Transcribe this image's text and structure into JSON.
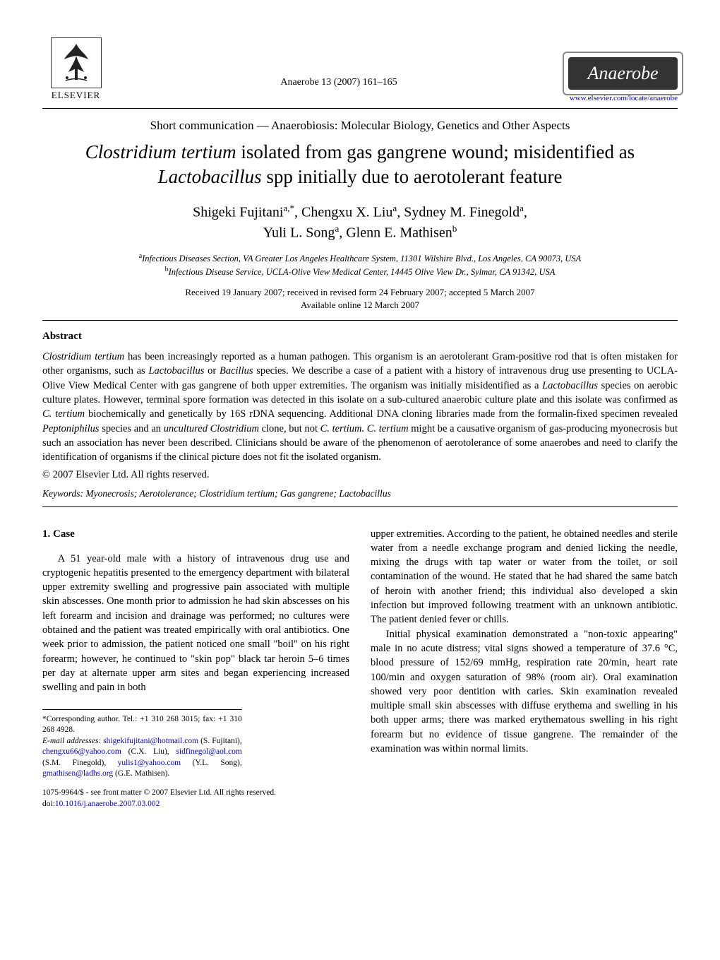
{
  "header": {
    "publisher": "ELSEVIER",
    "journal_ref": "Anaerobe 13 (2007) 161–165",
    "journal_name": "Anaerobe",
    "website": "www.elsevier.com/locate/anaerobe"
  },
  "section_line": "Short communication — Anaerobiosis: Molecular Biology, Genetics and Other Aspects",
  "title_parts": {
    "p1_italic": "Clostridium tertium",
    "p2": " isolated from gas gangrene wound; misidentified as ",
    "p3_italic": "Lactobacillus",
    "p4": " spp initially due to aerotolerant feature"
  },
  "authors": {
    "a1": "Shigeki Fujitani",
    "a1_sup": "a,*",
    "a2": "Chengxu X. Liu",
    "a2_sup": "a",
    "a3": "Sydney M. Finegold",
    "a3_sup": "a",
    "a4": "Yuli L. Song",
    "a4_sup": "a",
    "a5": "Glenn E. Mathisen",
    "a5_sup": "b"
  },
  "affiliations": {
    "a": "Infectious Diseases Section, VA Greater Los Angeles Healthcare System, 11301 Wilshire Blvd., Los Angeles, CA 90073, USA",
    "b": "Infectious Disease Service, UCLA-Olive View Medical Center, 14445 Olive View Dr., Sylmar, CA 91342, USA"
  },
  "dates": {
    "line1": "Received 19 January 2007; received in revised form 24 February 2007; accepted 5 March 2007",
    "line2": "Available online 12 March 2007"
  },
  "abstract": {
    "heading": "Abstract",
    "body_html": "<span class=\"italic\">Clostridium tertium</span> has been increasingly reported as a human pathogen. This organism is an aerotolerant Gram-positive rod that is often mistaken for other organisms, such as <span class=\"italic\">Lactobacillus</span> or <span class=\"italic\">Bacillus</span> species. We describe a case of a patient with a history of intravenous drug use presenting to UCLA-Olive View Medical Center with gas gangrene of both upper extremities. The organism was initially misidentified as a <span class=\"italic\">Lactobacillus</span> species on aerobic culture plates. However, terminal spore formation was detected in this isolate on a sub-cultured anaerobic culture plate and this isolate was confirmed as <span class=\"italic\">C. tertium</span> biochemically and genetically by 16S rDNA sequencing. Additional DNA cloning libraries made from the formalin-fixed specimen revealed <span class=\"italic\">Peptoniphilus</span> species and an <span class=\"italic\">uncultured Clostridium</span> clone, but not <span class=\"italic\">C. tertium. C. tertium</span> might be a causative organism of gas-producing myonecrosis but such an association has never been described. Clinicians should be aware of the phenomenon of aerotolerance of some anaerobes and need to clarify the identification of organisms if the clinical picture does not fit the isolated organism.",
    "copyright": "© 2007 Elsevier Ltd. All rights reserved."
  },
  "keywords": {
    "label": "Keywords:",
    "text": " Myonecrosis; Aerotolerance; Clostridium tertium; Gas gangrene; Lactobacillus"
  },
  "body": {
    "section_heading": "1.  Case",
    "left_p1": "A 51 year-old male with a history of intravenous drug use and cryptogenic hepatitis presented to the emergency department with bilateral upper extremity swelling and progressive pain associated with multiple skin abscesses. One month prior to admission he had skin abscesses on his left forearm and incision and drainage was performed; no cultures were obtained and the patient was treated empirically with oral antibiotics. One week prior to admission, the patient noticed one small \"boil\" on his right forearm; however, he continued to \"skin pop\" black tar heroin 5–6 times per day at alternate upper arm sites and began experiencing increased swelling and pain in both",
    "right_p1": "upper extremities. According to the patient, he obtained needles and sterile water from a needle exchange program and denied licking the needle, mixing the drugs with tap water or water from the toilet, or soil contamination of the wound. He stated that he had shared the same batch of heroin with another friend; this individual also developed a skin infection but improved following treatment with an unknown antibiotic. The patient denied fever or chills.",
    "right_p2": "Initial physical examination demonstrated a \"non-toxic appearing\" male in no acute distress; vital signs showed a temperature of 37.6 °C, blood pressure of 152/69 mmHg, respiration rate 20/min, heart rate 100/min and oxygen saturation of 98% (room air). Oral examination showed very poor dentition with caries. Skin examination revealed multiple small skin abscesses with diffuse erythema and swelling in his both upper arms; there was marked erythematous swelling in his right forearm but no evidence of tissue gangrene. The remainder of the examination was within normal limits."
  },
  "footnotes": {
    "corresponding": "*Corresponding author. Tel.: +1 310 268 3015; fax: +1 310 268 4928.",
    "email_label": "E-mail addresses:",
    "emails": [
      {
        "addr": "shigekifujitani@hotmail.com",
        "who": "(S. Fujitani),"
      },
      {
        "addr": "chengxu66@yahoo.com",
        "who": "(C.X. Liu),"
      },
      {
        "addr": "sidfinegol@aol.com",
        "who": "(S.M. Finegold),"
      },
      {
        "addr": "yulis1@yahoo.com",
        "who": "(Y.L. Song),"
      },
      {
        "addr": "gmathisen@ladhs.org",
        "who": "(G.E. Mathisen)."
      }
    ]
  },
  "bottom": {
    "front_matter": "1075-9964/$ - see front matter © 2007 Elsevier Ltd. All rights reserved.",
    "doi_label": "doi:",
    "doi": "10.1016/j.anaerobe.2007.03.002"
  },
  "colors": {
    "text": "#000000",
    "link": "#0000cc",
    "background": "#ffffff",
    "logo_bg": "#333333"
  },
  "typography": {
    "body_font": "Times New Roman",
    "title_size_pt": 20,
    "authors_size_pt": 15,
    "body_size_pt": 11,
    "footnote_size_pt": 8.5
  }
}
